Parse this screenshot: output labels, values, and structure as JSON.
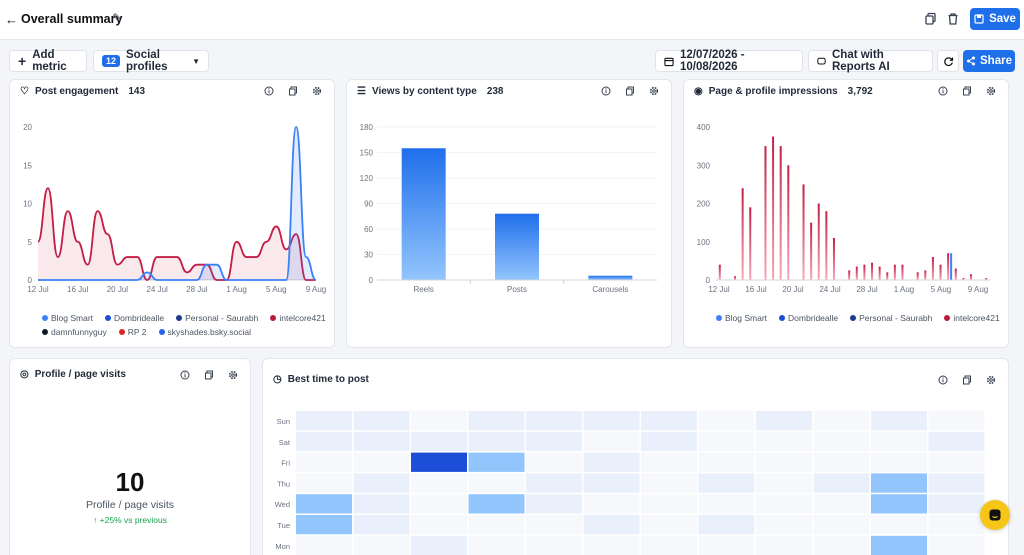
{
  "header": {
    "title": "Overall summary",
    "save_label": "Save"
  },
  "toolbar": {
    "add_metric_label": "Add metric",
    "profiles_count": "12",
    "profiles_label": "Social profiles",
    "date_range": "12/07/2026 - 10/08/2026",
    "chat_label": "Chat with Reports AI",
    "share_label": "Share"
  },
  "post_engagement": {
    "title": "Post engagement",
    "value": "143",
    "y_ticks": [
      "20",
      "15",
      "10",
      "5",
      "0"
    ],
    "x_ticks": [
      "12 Jul",
      "16 Jul",
      "20 Jul",
      "24 Jul",
      "28 Jul",
      "1 Aug",
      "5 Aug",
      "9 Aug"
    ],
    "legend": [
      {
        "name": "Blog Smart",
        "color": "#3b82f6"
      },
      {
        "name": "Dombridealle",
        "color": "#1d4ed8"
      },
      {
        "name": "Personal - Saurabh",
        "color": "#1e3a8a"
      },
      {
        "name": "intelcore421",
        "color": "#b91c3c"
      },
      {
        "name": "damnfunnyguy",
        "color": "#111827"
      },
      {
        "name": "RP 2",
        "color": "#dc2626"
      },
      {
        "name": "skyshades.bsky.social",
        "color": "#2563eb"
      }
    ]
  },
  "views_by_type": {
    "title": "Views by content type",
    "value": "238",
    "y_ticks": [
      "180",
      "150",
      "120",
      "90",
      "60",
      "30",
      "0"
    ]
  },
  "impressions": {
    "title": "Page & profile impressions",
    "value": "3,792",
    "y_ticks": [
      "400",
      "300",
      "200",
      "100",
      "0"
    ],
    "x_ticks": [
      "12 Jul",
      "16 Jul",
      "20 Jul",
      "24 Jul",
      "28 Jul",
      "1 Aug",
      "5 Aug",
      "9 Aug"
    ],
    "legend": [
      {
        "name": "Blog Smart",
        "color": "#3b82f6"
      },
      {
        "name": "Dombridealle",
        "color": "#1d4ed8"
      },
      {
        "name": "Personal - Saurabh",
        "color": "#1e3a8a"
      },
      {
        "name": "intelcore421",
        "color": "#b91c3c"
      }
    ]
  },
  "profile_visits": {
    "title": "Profile / page visits",
    "value": "10",
    "label": "Profile / page visits",
    "delta": "↑ +25% vs previous"
  },
  "best_time": {
    "title": "Best time to post",
    "days": [
      "Sun",
      "Sat",
      "Fri",
      "Thu",
      "Wed",
      "Tue",
      "Mon"
    ]
  },
  "chart_data": [
    {
      "type": "line",
      "title": "Post engagement",
      "x": [
        "12 Jul",
        "13 Jul",
        "14 Jul",
        "15 Jul",
        "16 Jul",
        "17 Jul",
        "18 Jul",
        "19 Jul",
        "20 Jul",
        "21 Jul",
        "22 Jul",
        "23 Jul",
        "24 Jul",
        "25 Jul",
        "26 Jul",
        "27 Jul",
        "28 Jul",
        "29 Jul",
        "30 Jul",
        "31 Jul",
        "1 Aug",
        "2 Aug",
        "3 Aug",
        "4 Aug",
        "5 Aug",
        "6 Aug",
        "7 Aug",
        "8 Aug",
        "9 Aug"
      ],
      "ylim": [
        0,
        20
      ],
      "series": [
        {
          "name": "intelcore421",
          "values": [
            5,
            12,
            3,
            9,
            5,
            2,
            9,
            6,
            2,
            3,
            3,
            0,
            3,
            3,
            3,
            1,
            2,
            2,
            0,
            0,
            5,
            3,
            3,
            5,
            7,
            4,
            6,
            0,
            0
          ]
        },
        {
          "name": "Blog Smart",
          "values": [
            0,
            0,
            0,
            0,
            0,
            0,
            0,
            0,
            0,
            0,
            0,
            1,
            0,
            0,
            0,
            0,
            0,
            2,
            2,
            0,
            0,
            0,
            0,
            0,
            0,
            0,
            20,
            3,
            0
          ]
        }
      ]
    },
    {
      "type": "bar",
      "title": "Views by content type",
      "categories": [
        "Reels",
        "Posts",
        "Carousels"
      ],
      "values": [
        155,
        78,
        5
      ],
      "ylim": [
        0,
        180
      ]
    },
    {
      "type": "bar",
      "title": "Page & profile impressions",
      "ylim": [
        0,
        400
      ],
      "values": [
        40,
        0,
        10,
        240,
        190,
        0,
        350,
        375,
        350,
        300,
        0,
        250,
        150,
        200,
        180,
        110,
        0,
        25,
        35,
        40,
        45,
        35,
        20,
        40,
        40,
        0,
        20,
        25,
        60,
        40,
        70,
        30,
        5,
        15,
        0,
        5
      ]
    },
    {
      "type": "heatmap",
      "title": "Best time to post",
      "rows": [
        "Sun",
        "Sat",
        "Fri",
        "Thu",
        "Wed",
        "Tue",
        "Mon"
      ],
      "values": [
        [
          0.1,
          0.05,
          0,
          0.1,
          0.05,
          0.1,
          0.05,
          0,
          0.1,
          0,
          0.05,
          0
        ],
        [
          0.1,
          0.1,
          0.05,
          0.1,
          0.05,
          0,
          0.05,
          0,
          0,
          0,
          0,
          0.1
        ],
        [
          0,
          0,
          1,
          0.5,
          0,
          0.05,
          0,
          0,
          0,
          0,
          0,
          0
        ],
        [
          0,
          0.05,
          0,
          0,
          0.05,
          0.05,
          0,
          0.05,
          0,
          0.05,
          0.6,
          0.05
        ],
        [
          0.5,
          0.05,
          0,
          0.5,
          0.05,
          0,
          0,
          0,
          0,
          0,
          0.6,
          0.05
        ],
        [
          0.5,
          0.05,
          0,
          0,
          0,
          0.05,
          0,
          0.05,
          0,
          0,
          0,
          0
        ],
        [
          0,
          0,
          0.05,
          0,
          0,
          0,
          0,
          0,
          0,
          0,
          0.6,
          0
        ]
      ]
    }
  ]
}
